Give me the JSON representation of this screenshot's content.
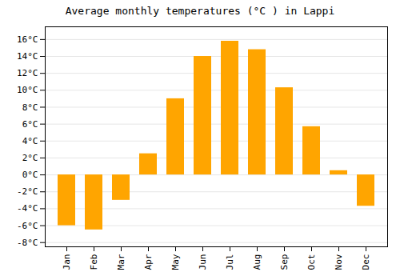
{
  "chart_data": {
    "type": "bar",
    "title": "Average monthly temperatures (°C ) in Lappi",
    "categories": [
      "Jan",
      "Feb",
      "Mar",
      "Apr",
      "May",
      "Jun",
      "Jul",
      "Aug",
      "Sep",
      "Oct",
      "Nov",
      "Dec"
    ],
    "values": [
      -6.0,
      -6.5,
      -3.0,
      2.5,
      9.0,
      14.0,
      15.8,
      14.8,
      10.3,
      5.7,
      0.5,
      -3.7
    ],
    "color": "#FFA500",
    "ylim": [
      -8.5,
      17.5
    ],
    "yticks": [
      {
        "value": -8,
        "label": "-8°C"
      },
      {
        "value": -6,
        "label": "-6°C"
      },
      {
        "value": -4,
        "label": "-4°C"
      },
      {
        "value": -2,
        "label": "-2°C"
      },
      {
        "value": 0,
        "label": "0°C"
      },
      {
        "value": 2,
        "label": "2°C"
      },
      {
        "value": 4,
        "label": "4°C"
      },
      {
        "value": 6,
        "label": "6°C"
      },
      {
        "value": 8,
        "label": "8°C"
      },
      {
        "value": 10,
        "label": "10°C"
      },
      {
        "value": 12,
        "label": "12°C"
      },
      {
        "value": 14,
        "label": "14°C"
      },
      {
        "value": 16,
        "label": "16°C"
      }
    ],
    "grid": true
  }
}
